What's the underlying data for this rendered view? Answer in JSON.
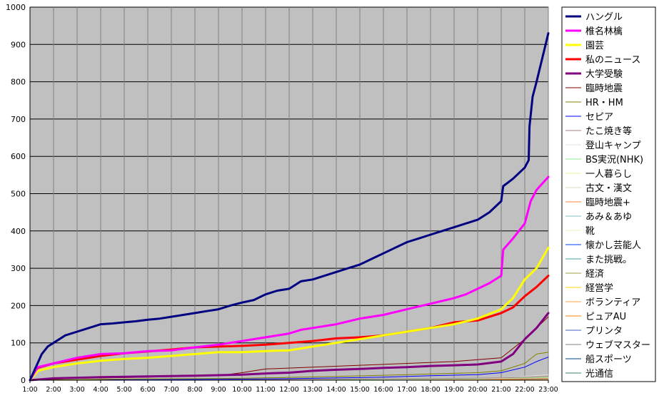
{
  "chart_data": {
    "type": "line",
    "title": "",
    "xlabel": "",
    "ylabel": "",
    "ylim": [
      0,
      1000
    ],
    "yticks": [
      0,
      100,
      200,
      300,
      400,
      500,
      600,
      700,
      800,
      900,
      1000
    ],
    "xlim": [
      "1:00",
      "23:00"
    ],
    "x_tick_labels": [
      "1:00",
      "2:00",
      "3:00",
      "4:00",
      "5:00",
      "6:00",
      "7:00",
      "8:00",
      "9:00",
      "10:00",
      "11:00",
      "12:00",
      "13:00",
      "14:00",
      "15:00",
      "16:00",
      "17:00",
      "18:00",
      "19:00",
      "20:00",
      "21:00",
      "22:00",
      "23:00"
    ],
    "grid": true,
    "legend_position": "right",
    "plot_background": "#c0c0c0",
    "series": [
      {
        "name": "ハングル",
        "color": "#000080",
        "width": 3,
        "points": [
          [
            "1:00",
            0
          ],
          [
            "1:30",
            70
          ],
          [
            "1:45",
            90
          ],
          [
            "2:00",
            100
          ],
          [
            "2:30",
            120
          ],
          [
            "3:00",
            130
          ],
          [
            "3:30",
            140
          ],
          [
            "4:00",
            150
          ],
          [
            "4:30",
            152
          ],
          [
            "5:00",
            155
          ],
          [
            "5:30",
            158
          ],
          [
            "6:00",
            162
          ],
          [
            "6:30",
            165
          ],
          [
            "7:00",
            170
          ],
          [
            "7:30",
            175
          ],
          [
            "8:00",
            180
          ],
          [
            "8:30",
            185
          ],
          [
            "9:00",
            190
          ],
          [
            "9:30",
            200
          ],
          [
            "10:00",
            208
          ],
          [
            "10:30",
            215
          ],
          [
            "11:00",
            230
          ],
          [
            "11:30",
            240
          ],
          [
            "12:00",
            245
          ],
          [
            "12:30",
            265
          ],
          [
            "13:00",
            270
          ],
          [
            "13:30",
            280
          ],
          [
            "14:00",
            290
          ],
          [
            "14:30",
            300
          ],
          [
            "15:00",
            310
          ],
          [
            "15:30",
            325
          ],
          [
            "16:00",
            340
          ],
          [
            "16:30",
            355
          ],
          [
            "17:00",
            370
          ],
          [
            "17:30",
            380
          ],
          [
            "18:00",
            390
          ],
          [
            "18:30",
            400
          ],
          [
            "19:00",
            410
          ],
          [
            "19:30",
            420
          ],
          [
            "20:00",
            430
          ],
          [
            "20:30",
            450
          ],
          [
            "21:00",
            480
          ],
          [
            "21:05",
            520
          ],
          [
            "21:30",
            540
          ],
          [
            "22:00",
            570
          ],
          [
            "22:10",
            590
          ],
          [
            "22:12",
            680
          ],
          [
            "22:20",
            760
          ],
          [
            "22:30",
            800
          ],
          [
            "23:00",
            930
          ]
        ]
      },
      {
        "name": "椎名林檎",
        "color": "#ff00ff",
        "width": 3,
        "points": [
          [
            "1:00",
            0
          ],
          [
            "1:20",
            35
          ],
          [
            "2:00",
            45
          ],
          [
            "3:00",
            60
          ],
          [
            "4:00",
            70
          ],
          [
            "5:00",
            72
          ],
          [
            "6:00",
            78
          ],
          [
            "7:00",
            80
          ],
          [
            "8:00",
            88
          ],
          [
            "9:00",
            95
          ],
          [
            "10:00",
            105
          ],
          [
            "11:00",
            115
          ],
          [
            "12:00",
            125
          ],
          [
            "12:30",
            135
          ],
          [
            "13:00",
            140
          ],
          [
            "14:00",
            150
          ],
          [
            "15:00",
            165
          ],
          [
            "16:00",
            175
          ],
          [
            "17:00",
            190
          ],
          [
            "18:00",
            205
          ],
          [
            "19:00",
            220
          ],
          [
            "19:30",
            230
          ],
          [
            "20:00",
            245
          ],
          [
            "20:30",
            260
          ],
          [
            "21:00",
            280
          ],
          [
            "21:05",
            350
          ],
          [
            "21:30",
            380
          ],
          [
            "22:00",
            420
          ],
          [
            "22:15",
            480
          ],
          [
            "22:30",
            510
          ],
          [
            "23:00",
            545
          ]
        ]
      },
      {
        "name": "園芸",
        "color": "#ffff00",
        "width": 3,
        "points": [
          [
            "1:00",
            0
          ],
          [
            "1:20",
            25
          ],
          [
            "2:00",
            35
          ],
          [
            "3:00",
            45
          ],
          [
            "4:00",
            52
          ],
          [
            "5:00",
            57
          ],
          [
            "6:00",
            60
          ],
          [
            "7:00",
            65
          ],
          [
            "8:00",
            70
          ],
          [
            "9:00",
            75
          ],
          [
            "10:00",
            75
          ],
          [
            "11:00",
            78
          ],
          [
            "12:00",
            80
          ],
          [
            "13:00",
            90
          ],
          [
            "14:00",
            100
          ],
          [
            "15:00",
            110
          ],
          [
            "16:00",
            120
          ],
          [
            "17:00",
            130
          ],
          [
            "18:00",
            140
          ],
          [
            "19:00",
            150
          ],
          [
            "20:00",
            165
          ],
          [
            "21:00",
            190
          ],
          [
            "21:30",
            220
          ],
          [
            "22:00",
            270
          ],
          [
            "22:30",
            300
          ],
          [
            "23:00",
            355
          ]
        ]
      },
      {
        "name": "私のニュース",
        "color": "#ff0000",
        "width": 3,
        "points": [
          [
            "1:00",
            0
          ],
          [
            "1:20",
            33
          ],
          [
            "2:00",
            45
          ],
          [
            "3:00",
            55
          ],
          [
            "4:00",
            65
          ],
          [
            "5:00",
            72
          ],
          [
            "6:00",
            77
          ],
          [
            "7:00",
            82
          ],
          [
            "8:00",
            88
          ],
          [
            "9:00",
            90
          ],
          [
            "10:00",
            92
          ],
          [
            "11:00",
            95
          ],
          [
            "12:00",
            100
          ],
          [
            "13:00",
            105
          ],
          [
            "14:00",
            112
          ],
          [
            "15:00",
            115
          ],
          [
            "16:00",
            120
          ],
          [
            "17:00",
            130
          ],
          [
            "18:00",
            140
          ],
          [
            "19:00",
            155
          ],
          [
            "20:00",
            160
          ],
          [
            "21:00",
            180
          ],
          [
            "21:30",
            195
          ],
          [
            "22:00",
            225
          ],
          [
            "22:30",
            250
          ],
          [
            "23:00",
            280
          ]
        ]
      },
      {
        "name": "大学受験",
        "color": "#800080",
        "width": 3,
        "points": [
          [
            "1:00",
            0
          ],
          [
            "2:00",
            5
          ],
          [
            "4:00",
            8
          ],
          [
            "6:00",
            10
          ],
          [
            "8:00",
            12
          ],
          [
            "10:00",
            15
          ],
          [
            "11:00",
            18
          ],
          [
            "12:00",
            20
          ],
          [
            "13:00",
            25
          ],
          [
            "14:00",
            28
          ],
          [
            "15:00",
            30
          ],
          [
            "16:00",
            33
          ],
          [
            "17:00",
            35
          ],
          [
            "18:00",
            38
          ],
          [
            "19:00",
            40
          ],
          [
            "20:00",
            42
          ],
          [
            "21:00",
            50
          ],
          [
            "21:30",
            70
          ],
          [
            "22:00",
            110
          ],
          [
            "22:30",
            140
          ],
          [
            "23:00",
            180
          ]
        ]
      },
      {
        "name": "臨時地震",
        "color": "#800000",
        "width": 1,
        "points": [
          [
            "1:00",
            0
          ],
          [
            "3:00",
            5
          ],
          [
            "6:00",
            8
          ],
          [
            "9:00",
            12
          ],
          [
            "10:00",
            20
          ],
          [
            "11:00",
            30
          ],
          [
            "13:00",
            35
          ],
          [
            "15:00",
            40
          ],
          [
            "17:00",
            45
          ],
          [
            "19:00",
            50
          ],
          [
            "20:00",
            55
          ],
          [
            "21:00",
            60
          ],
          [
            "22:00",
            110
          ],
          [
            "23:00",
            170
          ]
        ]
      },
      {
        "name": "HR・HM",
        "color": "#808000",
        "width": 1,
        "points": [
          [
            "1:00",
            0
          ],
          [
            "5:00",
            3
          ],
          [
            "10:00",
            5
          ],
          [
            "14:00",
            10
          ],
          [
            "17:00",
            15
          ],
          [
            "20:00",
            20
          ],
          [
            "21:00",
            25
          ],
          [
            "22:00",
            45
          ],
          [
            "22:30",
            70
          ],
          [
            "23:00",
            75
          ]
        ]
      },
      {
        "name": "セピア",
        "color": "#0000ff",
        "width": 1,
        "points": [
          [
            "1:00",
            0
          ],
          [
            "8:00",
            2
          ],
          [
            "12:00",
            4
          ],
          [
            "16:00",
            8
          ],
          [
            "18:00",
            12
          ],
          [
            "20:00",
            15
          ],
          [
            "21:00",
            20
          ],
          [
            "22:00",
            35
          ],
          [
            "22:30",
            50
          ],
          [
            "23:00",
            62
          ]
        ]
      },
      {
        "name": "たこ焼き等",
        "color": "#a08080",
        "width": 1,
        "points": [
          [
            "1:00",
            0
          ],
          [
            "6:00",
            1
          ],
          [
            "12:00",
            2
          ],
          [
            "18:00",
            4
          ],
          [
            "21:00",
            6
          ],
          [
            "23:00",
            10
          ]
        ]
      },
      {
        "name": "登山キャンプ",
        "color": "#e0e0e0",
        "width": 1,
        "points": [
          [
            "1:00",
            0
          ],
          [
            "8:00",
            1
          ],
          [
            "16:00",
            3
          ],
          [
            "21:00",
            5
          ],
          [
            "23:00",
            15
          ]
        ]
      },
      {
        "name": "BS実況(NHK)",
        "color": "#90ee90",
        "width": 1,
        "points": [
          [
            "1:00",
            0
          ],
          [
            "10:00",
            1
          ],
          [
            "20:00",
            3
          ],
          [
            "23:00",
            8
          ]
        ]
      },
      {
        "name": "一人暮らし",
        "color": "#f0f0a0",
        "width": 1,
        "points": [
          [
            "1:00",
            0
          ],
          [
            "10:00",
            1
          ],
          [
            "20:00",
            4
          ],
          [
            "23:00",
            10
          ]
        ]
      },
      {
        "name": "古文・漢文",
        "color": "#d8d8c0",
        "width": 1,
        "points": [
          [
            "1:00",
            0
          ],
          [
            "12:00",
            1
          ],
          [
            "20:00",
            3
          ],
          [
            "23:00",
            7
          ]
        ]
      },
      {
        "name": "臨時地震+",
        "color": "#ff8040",
        "width": 1,
        "points": [
          [
            "1:00",
            0
          ],
          [
            "12:00",
            1
          ],
          [
            "20:00",
            2
          ],
          [
            "23:00",
            5
          ]
        ]
      },
      {
        "name": "あみ＆あゆ",
        "color": "#80c0c0",
        "width": 1,
        "points": [
          [
            "1:00",
            0
          ],
          [
            "12:00",
            1
          ],
          [
            "20:00",
            2
          ],
          [
            "23:00",
            5
          ]
        ]
      },
      {
        "name": "靴",
        "color": "#f0f0c0",
        "width": 1,
        "points": [
          [
            "1:00",
            0
          ],
          [
            "12:00",
            1
          ],
          [
            "23:00",
            4
          ]
        ]
      },
      {
        "name": "懐かし芸能人",
        "color": "#0040ff",
        "width": 1,
        "points": [
          [
            "1:00",
            0
          ],
          [
            "12:00",
            1
          ],
          [
            "23:00",
            4
          ]
        ]
      },
      {
        "name": "また挑戦。",
        "color": "#40a0a0",
        "width": 1,
        "points": [
          [
            "1:00",
            0
          ],
          [
            "12:00",
            1
          ],
          [
            "23:00",
            3
          ]
        ]
      },
      {
        "name": "経済",
        "color": "#a0a040",
        "width": 1,
        "points": [
          [
            "1:00",
            0
          ],
          [
            "12:00",
            1
          ],
          [
            "23:00",
            3
          ]
        ]
      },
      {
        "name": "経営学",
        "color": "#ffd700",
        "width": 1,
        "points": [
          [
            "1:00",
            0
          ],
          [
            "12:00",
            1
          ],
          [
            "23:00",
            3
          ]
        ]
      },
      {
        "name": "ボランティア",
        "color": "#ffa040",
        "width": 1,
        "points": [
          [
            "1:00",
            0
          ],
          [
            "12:00",
            1
          ],
          [
            "23:00",
            3
          ]
        ]
      },
      {
        "name": "ピュアAU",
        "color": "#ff8000",
        "width": 1,
        "points": [
          [
            "1:00",
            0
          ],
          [
            "12:00",
            1
          ],
          [
            "23:00",
            2
          ]
        ]
      },
      {
        "name": "プリンタ",
        "color": "#4060c0",
        "width": 1,
        "points": [
          [
            "1:00",
            0
          ],
          [
            "12:00",
            1
          ],
          [
            "23:00",
            2
          ]
        ]
      },
      {
        "name": "ウェブマスター",
        "color": "#808080",
        "width": 1,
        "points": [
          [
            "1:00",
            0
          ],
          [
            "12:00",
            1
          ],
          [
            "23:00",
            2
          ]
        ]
      },
      {
        "name": "船スポーツ",
        "color": "#004080",
        "width": 1,
        "points": [
          [
            "1:00",
            0
          ],
          [
            "12:00",
            1
          ],
          [
            "23:00",
            2
          ]
        ]
      },
      {
        "name": "光通信",
        "color": "#408060",
        "width": 1,
        "points": [
          [
            "1:00",
            0
          ],
          [
            "12:00",
            1
          ],
          [
            "23:00",
            2
          ]
        ]
      }
    ]
  }
}
